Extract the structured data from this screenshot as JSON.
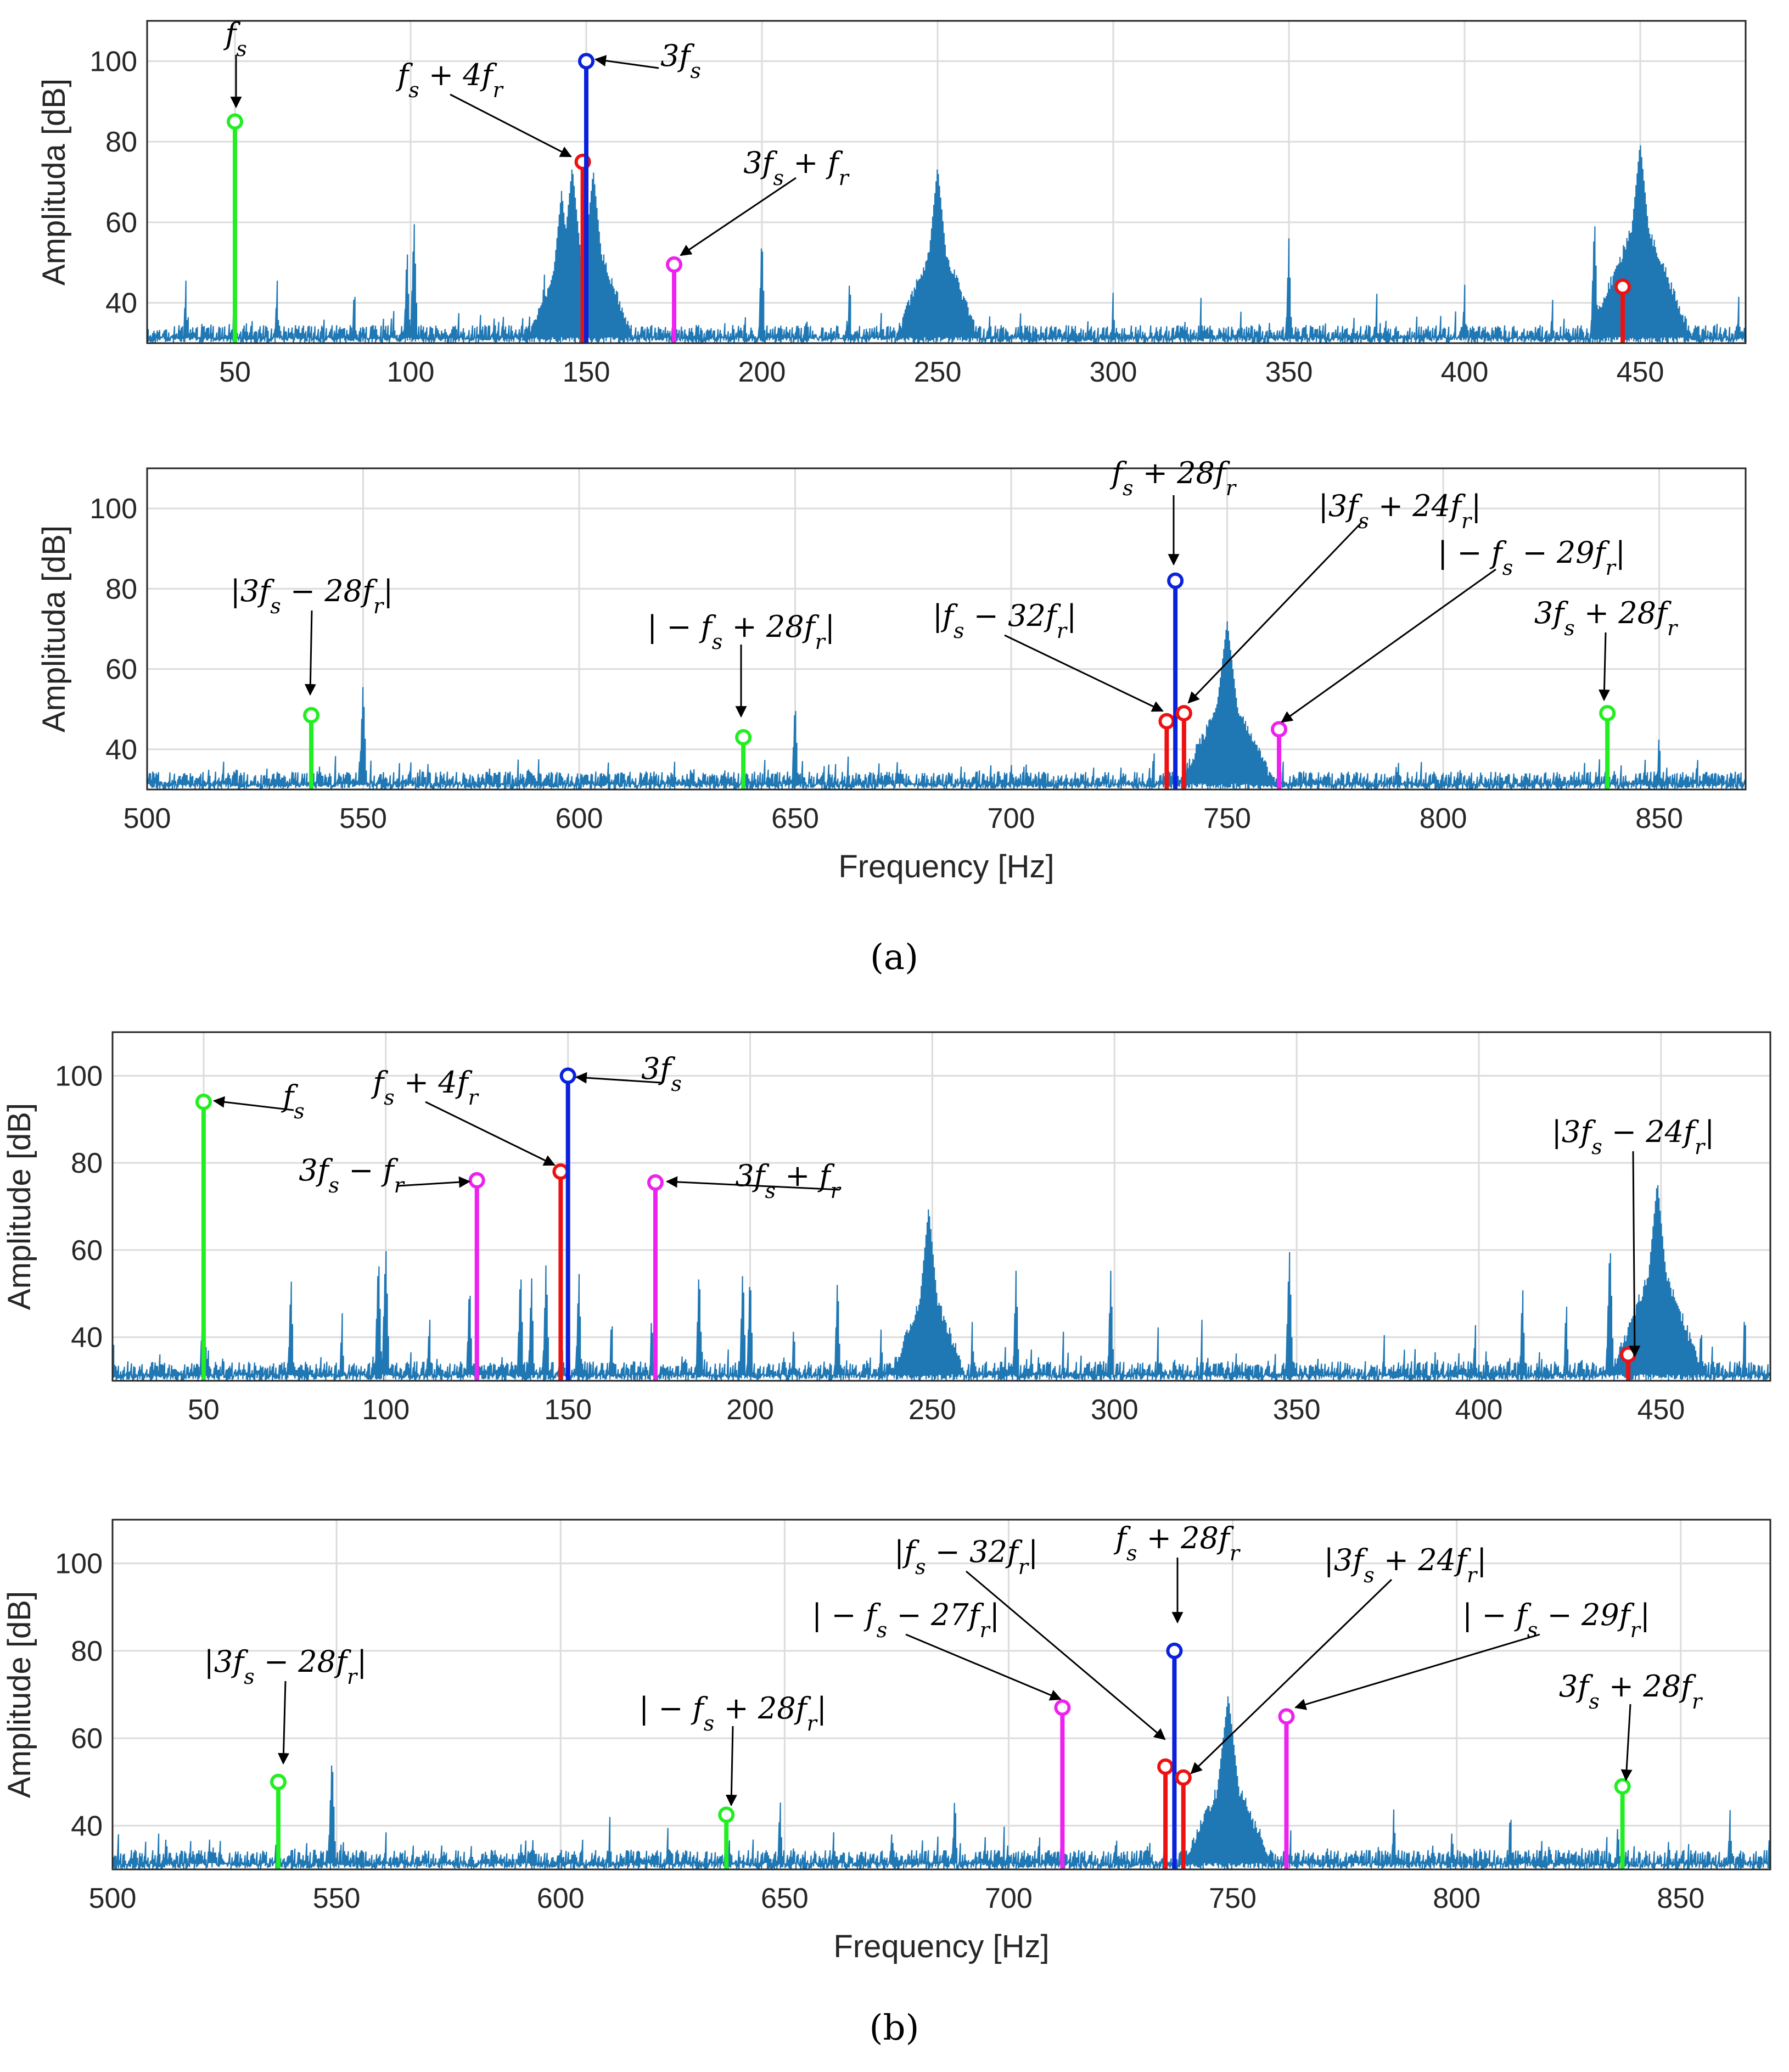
{
  "colors": {
    "noise": "#1f77b4",
    "green": "#22ee22",
    "red": "#ee1111",
    "blue": "#0b22dd",
    "magenta": "#ee22ee",
    "grid": "#dcdcdc",
    "axis": "#262626"
  },
  "captions": {
    "a": "(a)",
    "b": "(b)"
  },
  "chart_data": [
    {
      "id": "a1",
      "type": "line",
      "title": "",
      "xlabel": "",
      "ylabel": "Amplituda [dB]",
      "xlim": [
        25,
        480
      ],
      "ylim": [
        30,
        110
      ],
      "xticks": [
        50,
        100,
        150,
        200,
        250,
        300,
        350,
        400,
        450
      ],
      "yticks": [
        40,
        60,
        80,
        100
      ],
      "spectrum_peaks": [
        [
          36,
          47
        ],
        [
          50,
          52
        ],
        [
          62,
          47
        ],
        [
          84,
          46
        ],
        [
          99,
          55
        ],
        [
          101,
          61
        ],
        [
          120,
          40
        ],
        [
          138,
          50
        ],
        [
          143,
          68
        ],
        [
          146,
          74
        ],
        [
          152,
          73
        ],
        [
          155,
          52
        ],
        [
          175,
          43
        ],
        [
          200,
          58
        ],
        [
          225,
          48
        ],
        [
          250,
          74
        ],
        [
          300,
          44
        ],
        [
          325,
          42
        ],
        [
          350,
          56
        ],
        [
          375,
          43
        ],
        [
          400,
          46
        ],
        [
          425,
          43
        ],
        [
          437,
          62
        ],
        [
          450,
          80
        ],
        [
          478,
          43
        ]
      ],
      "markers": [
        {
          "x": 50,
          "y": 85,
          "color": "green",
          "label": "f_s"
        },
        {
          "x": 149,
          "y": 75,
          "color": "red",
          "label": "f_s + 4f_r"
        },
        {
          "x": 150,
          "y": 100,
          "color": "blue",
          "label": "3f_s"
        },
        {
          "x": 175,
          "y": 49.5,
          "color": "magenta",
          "label": "3f_s + f_r"
        },
        {
          "x": 445,
          "y": 44,
          "color": "red",
          "label": ""
        }
      ]
    },
    {
      "id": "a2",
      "type": "line",
      "title": "",
      "xlabel": "Frequency [Hz]",
      "ylabel": "Amplituda [dB]",
      "xlim": [
        500,
        870
      ],
      "ylim": [
        30,
        110
      ],
      "xticks": [
        500,
        550,
        600,
        650,
        700,
        750,
        800,
        850
      ],
      "yticks": [
        40,
        60,
        80,
        100
      ],
      "spectrum_peaks": [
        [
          550,
          57
        ],
        [
          622,
          38
        ],
        [
          650,
          53
        ],
        [
          700,
          38
        ],
        [
          733,
          42
        ],
        [
          738,
          45
        ],
        [
          750,
          72
        ],
        [
          763,
          38
        ],
        [
          838,
          46
        ],
        [
          850,
          45
        ]
      ],
      "markers": [
        {
          "x": 538,
          "y": 48.5,
          "color": "green",
          "label": "|3f_s − 28f_r|"
        },
        {
          "x": 638,
          "y": 43,
          "color": "green",
          "label": "| − f_s + 28f_r|"
        },
        {
          "x": 736,
          "y": 47,
          "color": "red",
          "label": "|f_s − 32f_r|"
        },
        {
          "x": 738,
          "y": 82,
          "color": "blue",
          "label": "f_s + 28f_r"
        },
        {
          "x": 740,
          "y": 49,
          "color": "red",
          "label": "|3f_s + 24f_r|"
        },
        {
          "x": 762,
          "y": 45,
          "color": "magenta",
          "label": "| − f_s − 29f_r|"
        },
        {
          "x": 838,
          "y": 49,
          "color": "green",
          "label": "3f_s + 28f_r"
        }
      ]
    },
    {
      "id": "b1",
      "type": "line",
      "title": "",
      "xlabel": "",
      "ylabel": "Amplitude [dB]",
      "xlim": [
        25,
        480
      ],
      "ylim": [
        30,
        110
      ],
      "xticks": [
        50,
        100,
        150,
        200,
        250,
        300,
        350,
        400,
        450
      ],
      "yticks": [
        40,
        60,
        80,
        100
      ],
      "spectrum_peaks": [
        [
          25,
          48
        ],
        [
          50,
          58
        ],
        [
          74,
          55
        ],
        [
          88,
          47
        ],
        [
          98,
          60
        ],
        [
          100,
          62
        ],
        [
          112,
          47
        ],
        [
          123,
          54
        ],
        [
          137,
          57
        ],
        [
          140,
          55
        ],
        [
          144,
          58
        ],
        [
          153,
          56
        ],
        [
          162,
          47
        ],
        [
          173,
          47
        ],
        [
          186,
          57
        ],
        [
          198,
          57
        ],
        [
          200,
          56
        ],
        [
          212,
          45
        ],
        [
          224,
          55
        ],
        [
          236,
          44
        ],
        [
          249,
          70
        ],
        [
          261,
          45
        ],
        [
          273,
          56
        ],
        [
          286,
          42
        ],
        [
          299,
          56
        ],
        [
          312,
          43
        ],
        [
          324,
          44
        ],
        [
          348,
          61
        ],
        [
          374,
          42
        ],
        [
          399,
          45
        ],
        [
          412,
          53
        ],
        [
          424,
          50
        ],
        [
          436,
          63
        ],
        [
          449,
          76
        ],
        [
          461,
          45
        ],
        [
          473,
          48
        ]
      ],
      "markers": [
        {
          "x": 50,
          "y": 94,
          "color": "green",
          "label": "f_s"
        },
        {
          "x": 125,
          "y": 76,
          "color": "magenta",
          "label": "3f_s − f_r"
        },
        {
          "x": 148,
          "y": 78,
          "color": "red",
          "label": "f_s + 4f_r"
        },
        {
          "x": 150,
          "y": 100,
          "color": "blue",
          "label": "3f_s"
        },
        {
          "x": 174,
          "y": 75.5,
          "color": "magenta",
          "label": "3f_s + f_r"
        },
        {
          "x": 441,
          "y": 36,
          "color": "red",
          "label": "|3f_s − 24f_r|"
        }
      ]
    },
    {
      "id": "b2",
      "type": "line",
      "title": "",
      "xlabel": "Frequency [Hz]",
      "ylabel": "Amplitude [dB]",
      "xlim": [
        500,
        870
      ],
      "ylim": [
        30,
        110
      ],
      "xticks": [
        500,
        550,
        600,
        650,
        700,
        750,
        800,
        850
      ],
      "yticks": [
        40,
        60,
        80,
        100
      ],
      "spectrum_peaks": [
        [
          512,
          40
        ],
        [
          524,
          38
        ],
        [
          549,
          57
        ],
        [
          561,
          40
        ],
        [
          611,
          42
        ],
        [
          624,
          41
        ],
        [
          649,
          47
        ],
        [
          661,
          40
        ],
        [
          674,
          41
        ],
        [
          688,
          48
        ],
        [
          699,
          40
        ],
        [
          712,
          45
        ],
        [
          724,
          40
        ],
        [
          749,
          70
        ],
        [
          763,
          40
        ],
        [
          786,
          45
        ],
        [
          799,
          41
        ],
        [
          812,
          45
        ],
        [
          836,
          42
        ],
        [
          849,
          38
        ],
        [
          861,
          44
        ]
      ],
      "markers": [
        {
          "x": 537,
          "y": 50,
          "color": "green",
          "label": "|3f_s − 28f_r|"
        },
        {
          "x": 637,
          "y": 42.5,
          "color": "green",
          "label": "| − f_s + 28f_r|"
        },
        {
          "x": 712,
          "y": 67,
          "color": "magenta",
          "label": "| − f_s − 27f_r|"
        },
        {
          "x": 735,
          "y": 53.5,
          "color": "red",
          "label": "|f_s − 32f_r|"
        },
        {
          "x": 737,
          "y": 80,
          "color": "blue",
          "label": "f_s + 28f_r"
        },
        {
          "x": 739,
          "y": 51,
          "color": "red",
          "label": "|3f_s + 24f_r|"
        },
        {
          "x": 762,
          "y": 65,
          "color": "magenta",
          "label": "| − f_s − 29f_r|"
        },
        {
          "x": 837,
          "y": 49,
          "color": "green",
          "label": "3f_s + 28f_r"
        }
      ]
    }
  ]
}
